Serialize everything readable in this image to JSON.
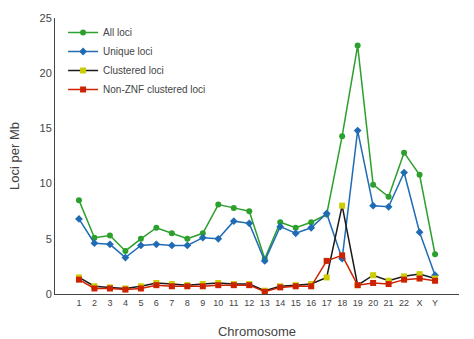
{
  "chart_data": {
    "type": "line",
    "xlabel": "Chromosome",
    "ylabel": "Loci per Mb",
    "categories": [
      "1",
      "2",
      "3",
      "4",
      "5",
      "6",
      "7",
      "8",
      "9",
      "10",
      "11",
      "12",
      "13",
      "14",
      "15",
      "16",
      "17",
      "18",
      "19",
      "20",
      "21",
      "22",
      "X",
      "Y"
    ],
    "series": [
      {
        "name": "All loci",
        "color": "#2ca02c",
        "marker": "circle",
        "values": [
          8.5,
          5.1,
          5.3,
          3.9,
          5.0,
          6.0,
          5.5,
          5.0,
          5.5,
          8.1,
          7.8,
          7.5,
          3.2,
          6.5,
          6.0,
          6.5,
          7.2,
          14.3,
          22.5,
          9.9,
          8.8,
          12.8,
          10.8,
          3.6
        ]
      },
      {
        "name": "Unique loci",
        "color": "#1f6cb5",
        "marker": "diamond",
        "values": [
          6.8,
          4.6,
          4.5,
          3.3,
          4.4,
          4.5,
          4.4,
          4.4,
          5.1,
          5.0,
          6.6,
          6.4,
          3.0,
          6.1,
          5.5,
          6.0,
          7.3,
          3.2,
          14.8,
          8.0,
          7.9,
          11.0,
          5.6,
          1.7
        ]
      },
      {
        "name": "Clustered loci",
        "color": "#1a1a1a",
        "marker": "square",
        "colors": [
          "#cccc00",
          "#cccc00",
          "#cccc00",
          "#cccc00",
          "#cccc00",
          "#cccc00",
          "#cccc00",
          "#cccc00",
          "#cccc00",
          "#cccc00",
          "#cccc00",
          "#cccc00",
          "#cccc00",
          "#cccc00",
          "#cccc00",
          "#cccc00",
          "#cccc00",
          "#cccc00",
          "#cccc00",
          "#cccc00",
          "#cccc00",
          "#cccc00",
          "#cccc00",
          "#cccc00"
        ],
        "values": [
          1.5,
          0.7,
          0.6,
          0.5,
          0.7,
          1.0,
          0.9,
          0.8,
          0.9,
          1.0,
          0.9,
          0.9,
          0.3,
          0.7,
          0.8,
          0.9,
          1.5,
          8.0,
          0.8,
          1.7,
          1.2,
          1.6,
          1.8,
          1.4
        ]
      },
      {
        "name": "Non-ZNF clustered loci",
        "color": "#cc2200",
        "marker": "square",
        "values": [
          1.3,
          0.5,
          0.5,
          0.4,
          0.5,
          0.8,
          0.7,
          0.7,
          0.7,
          0.8,
          0.8,
          0.8,
          0.2,
          0.6,
          0.7,
          0.7,
          3.0,
          3.5,
          0.8,
          1.0,
          0.9,
          1.3,
          1.4,
          1.2
        ]
      }
    ],
    "ylim": [
      0,
      25
    ],
    "yticks": [
      0,
      5,
      10,
      15,
      20,
      25
    ],
    "grid": false,
    "legend": "upper left"
  }
}
